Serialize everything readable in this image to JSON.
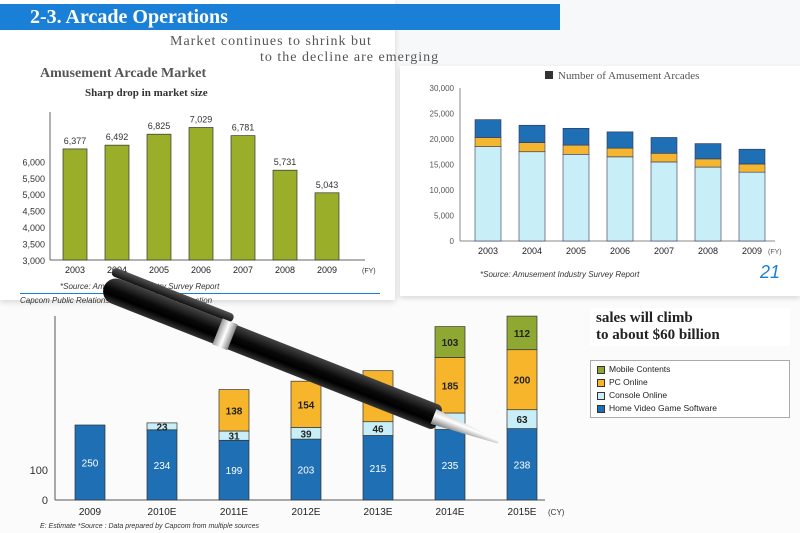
{
  "header": {
    "section_title": "2-3.  Arcade Operations",
    "subtitle_line1": "Market continues to shrink but",
    "subtitle_line2": "to the decline are emerging",
    "right_legend_label": "Number of Amusement Arcades"
  },
  "left_sheet": {
    "heading": "Amusement Arcade Market",
    "source": "*Source: Amusement Industry Survey Report",
    "footer": "Capcom Public Relations & Investor Relations Section"
  },
  "right_sheet": {
    "source": "*Source: Amusement Industry Survey Report",
    "page_number": "21"
  },
  "headline": {
    "line1": "sales will climb",
    "line2": "to about $60 billion"
  },
  "bottom_footer": "E: Estimate  *Source : Data prepared by Capcom from multiple sources",
  "chart_data": [
    {
      "type": "bar",
      "title": "Sharp drop in market size",
      "categories": [
        "2003",
        "2004",
        "2005",
        "2006",
        "2007",
        "2008",
        "2009"
      ],
      "x_unit": "(FY)",
      "values": [
        6377,
        6492,
        6825,
        7029,
        6781,
        5731,
        5043
      ],
      "ylim": [
        3000,
        7500
      ],
      "yticks": [
        "3,000",
        "3,500",
        "4,000",
        "4,500",
        "5,000",
        "5,500",
        "6,000"
      ],
      "color": "#9aae2a"
    },
    {
      "type": "bar",
      "stacked": true,
      "categories": [
        "2003",
        "2004",
        "2005",
        "2006",
        "2007",
        "2008",
        "2009"
      ],
      "x_unit": "(FY)",
      "ylim": [
        0,
        30000
      ],
      "yticks": [
        "0",
        "5,000",
        "10,000",
        "15,000",
        "20,000",
        "25,000",
        "30,000"
      ],
      "series": [
        {
          "values": [
            18500,
            17500,
            17000,
            16500,
            15500,
            14500,
            13500
          ],
          "color": "#c8eef8"
        },
        {
          "values": [
            1800,
            1800,
            1800,
            1700,
            1700,
            1600,
            1600
          ],
          "color": "#f4b630"
        },
        {
          "values": [
            3500,
            3400,
            3300,
            3200,
            3100,
            3000,
            2900
          ],
          "color": "#1f6fb4"
        }
      ]
    },
    {
      "type": "bar",
      "stacked": true,
      "categories": [
        "2009",
        "2010E",
        "2011E",
        "2012E",
        "2013E",
        "2014E",
        "2015E"
      ],
      "x_unit": "(CY)",
      "yticks": [
        "0",
        "100"
      ],
      "legend_position": "right",
      "series": [
        {
          "name": "Home Video Game Software",
          "values": [
            250,
            234,
            199,
            203,
            215,
            235,
            238
          ],
          "color": "#1f6fb4"
        },
        {
          "name": "Console Online",
          "values": [
            null,
            23,
            31,
            39,
            46,
            55,
            63
          ],
          "color": "#c8eef8"
        },
        {
          "name": "PC Online",
          "values": [
            null,
            null,
            138,
            154,
            170,
            185,
            200
          ],
          "color": "#f7b52c"
        },
        {
          "name": "Mobile Contents",
          "values": [
            null,
            null,
            null,
            null,
            null,
            103,
            112
          ],
          "color": "#8ea832"
        }
      ]
    }
  ]
}
